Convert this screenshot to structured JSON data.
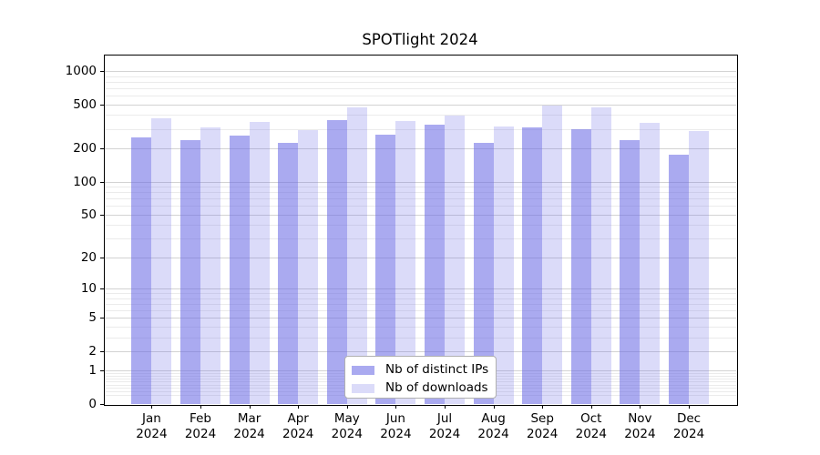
{
  "colors": {
    "ip_bar": "#6868e48f",
    "dl_bar": "#6868e43d",
    "ip_bar_flat": "#aaaaf0",
    "dl_bar_flat": "#dbdbf8",
    "grid_major": "#d3d3d3",
    "grid_minor": "#ebebeb",
    "axis": "#000000",
    "legend_border": "#b0b0b0"
  },
  "chart_data": {
    "type": "bar",
    "title": "SPOTlight 2024",
    "xlabel": "",
    "ylabel": "",
    "yscale": "log(value+1)",
    "grid": true,
    "legend_position": "lower center",
    "ylim": [
      0,
      1400
    ],
    "yticks": [
      0,
      1,
      2,
      5,
      10,
      20,
      50,
      100,
      200,
      500,
      1000
    ],
    "categories": [
      "Jan 2024",
      "Feb 2024",
      "Mar 2024",
      "Apr 2024",
      "May 2024",
      "Jun 2024",
      "Jul 2024",
      "Aug 2024",
      "Sep 2024",
      "Oct 2024",
      "Nov 2024",
      "Dec 2024"
    ],
    "series": [
      {
        "name": "Nb of distinct IPs",
        "color": "#6868e48f",
        "values": [
          251,
          236,
          261,
          223,
          358,
          264,
          325,
          223,
          309,
          300,
          239,
          176
        ]
      },
      {
        "name": "Nb of downloads",
        "color": "#6868e43d",
        "values": [
          374,
          311,
          344,
          292,
          473,
          353,
          396,
          313,
          484,
          469,
          340,
          285
        ]
      }
    ]
  }
}
